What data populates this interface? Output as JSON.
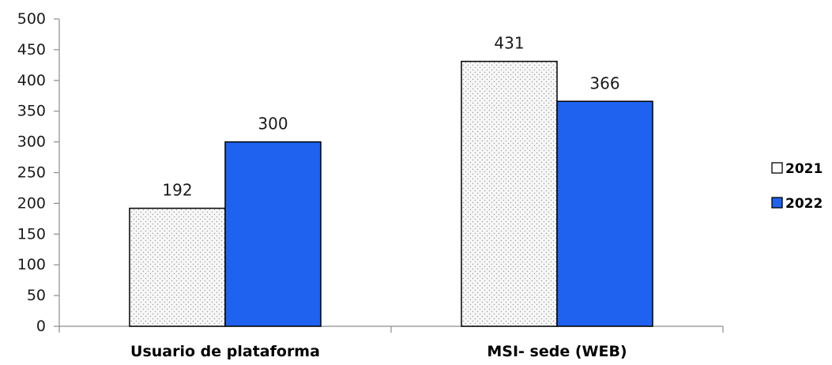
{
  "chart_data": {
    "type": "bar",
    "categories": [
      "Usuario de plataforma",
      "MSI- sede (WEB)"
    ],
    "series": [
      {
        "name": "2021",
        "values": [
          192,
          431
        ],
        "color": "#f4f4f4",
        "pattern": "dotted"
      },
      {
        "name": "2022",
        "values": [
          300,
          366
        ],
        "color": "#1f62f0"
      }
    ],
    "title": "",
    "xlabel": "",
    "ylabel": "",
    "ylim": [
      0,
      500
    ],
    "yticks": [
      0,
      50,
      100,
      150,
      200,
      250,
      300,
      350,
      400,
      450,
      500
    ],
    "grid": false,
    "legend": "right",
    "data_labels": true
  }
}
